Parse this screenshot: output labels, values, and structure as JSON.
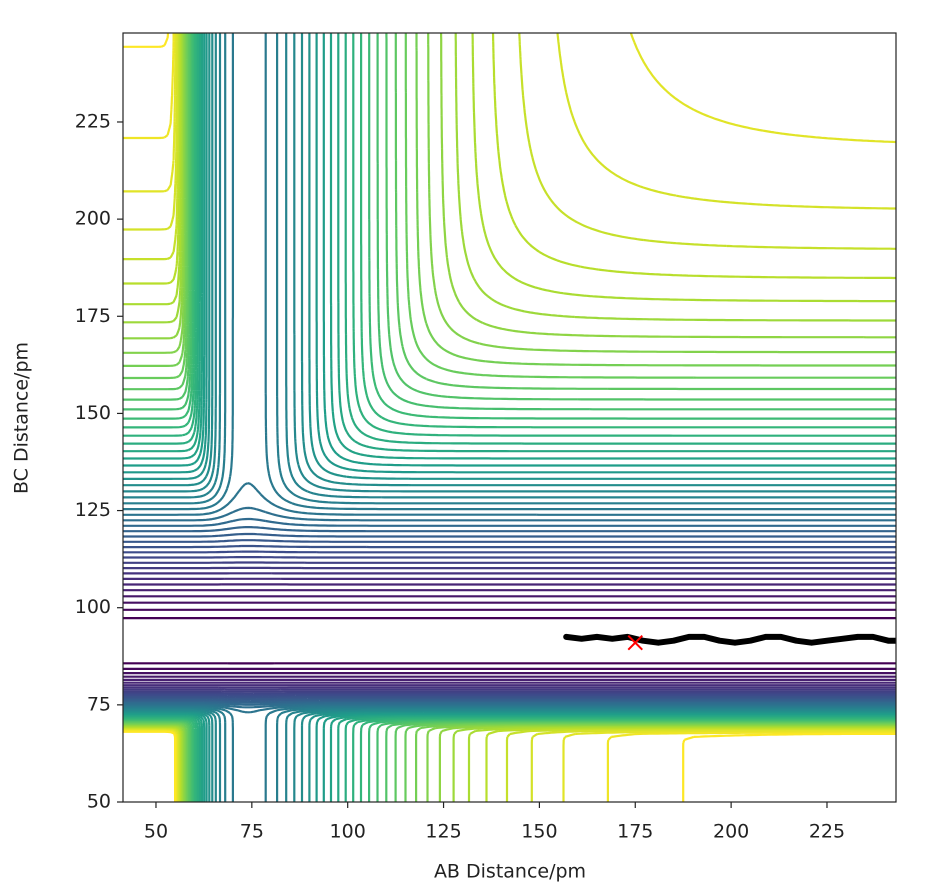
{
  "chart_data": {
    "type": "contour",
    "xlabel": "AB Distance/pm",
    "ylabel": "BC Distance/pm",
    "xlim": [
      41.4,
      243
    ],
    "ylim": [
      50,
      247.9
    ],
    "xticks": [
      50,
      75,
      100,
      125,
      150,
      175,
      200,
      225
    ],
    "yticks": [
      50,
      75,
      100,
      125,
      150,
      175,
      200,
      225
    ],
    "series": [
      {
        "color": "#000000",
        "x": [
          157,
          161,
          165,
          169,
          173,
          177,
          181,
          185,
          189,
          193,
          197,
          201,
          205,
          209,
          213,
          217,
          221,
          225,
          229,
          233,
          237,
          241,
          245
        ],
        "y": [
          92.5,
          92,
          92.5,
          92,
          92.5,
          91.5,
          91,
          91.5,
          92.5,
          92.5,
          91.5,
          91,
          91.5,
          92.5,
          92.5,
          91.5,
          91,
          91.5,
          92,
          92.5,
          92.5,
          91.5,
          91.5
        ]
      },
      {
        "color": "#ff0000",
        "marker": "x",
        "x": [
          175
        ],
        "y": [
          91
        ]
      }
    ]
  }
}
